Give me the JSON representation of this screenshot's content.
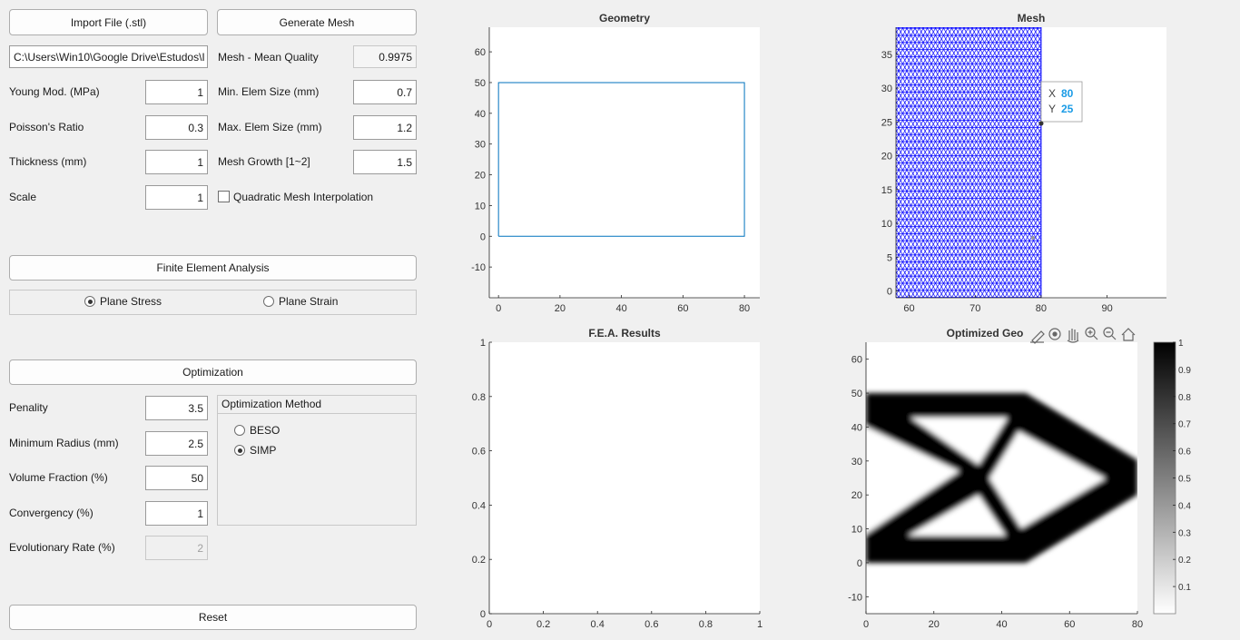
{
  "left": {
    "import_button": "Import File (.stl)",
    "generate_button": "Generate Mesh",
    "file_path": "C:\\Users\\Win10\\Google Drive\\Estudos\\I",
    "mesh_quality_label": "Mesh - Mean Quality",
    "mesh_quality_value": "0.9975",
    "young_label": "Young Mod. (MPa)",
    "young_value": "1",
    "min_elem_label": "Min. Elem Size (mm)",
    "min_elem_value": "0.7",
    "poisson_label": "Poisson's Ratio",
    "poisson_value": "0.3",
    "max_elem_label": "Max. Elem Size (mm)",
    "max_elem_value": "1.2",
    "thickness_label": "Thickness (mm)",
    "thickness_value": "1",
    "growth_label": "Mesh Growth [1~2]",
    "growth_value": "1.5",
    "scale_label": "Scale",
    "scale_value": "1",
    "quadratic_label": "Quadratic Mesh Interpolation",
    "fea_button": "Finite Element Analysis",
    "plane_stress": "Plane Stress",
    "plane_strain": "Plane Strain",
    "optimization_button": "Optimization",
    "penalty_label": "Penality",
    "penalty_value": "3.5",
    "radius_label": "Minimum Radius (mm)",
    "radius_value": "2.5",
    "volume_label": "Volume Fraction (%)",
    "volume_value": "50",
    "convergency_label": "Convergency (%)",
    "convergency_value": "1",
    "evolutionary_label": "Evolutionary Rate (%)",
    "evolutionary_value": "2",
    "method_title": "Optimization Method",
    "beso": "BESO",
    "simp": "SIMP",
    "reset_button": "Reset"
  },
  "chart_data": [
    {
      "type": "line",
      "title": "Geometry",
      "x": [
        0,
        80,
        80,
        0,
        0
      ],
      "y": [
        0,
        0,
        50,
        50,
        0
      ],
      "xlim": [
        -3,
        85
      ],
      "ylim": [
        -20,
        68
      ],
      "xticks": [
        "0",
        "20",
        "40",
        "60",
        "80"
      ],
      "yticks": [
        "-10",
        "0",
        "10",
        "20",
        "30",
        "40",
        "50",
        "60"
      ],
      "color": "#0072bd"
    },
    {
      "type": "scatter",
      "title": "Mesh",
      "xlim": [
        58,
        99
      ],
      "ylim": [
        -1,
        39
      ],
      "xticks": [
        "60",
        "70",
        "80",
        "90"
      ],
      "yticks": [
        "0",
        "5",
        "10",
        "15",
        "20",
        "25",
        "30",
        "35"
      ],
      "mesh_extent": {
        "x": [
          58,
          80
        ],
        "y": [
          -1,
          39
        ]
      },
      "color": "#0000ff",
      "datatip": {
        "x": "80",
        "y": "25",
        "x_label": "X",
        "y_label": "Y"
      }
    },
    {
      "type": "line",
      "title": "F.E.A. Results",
      "xlim": [
        0,
        1
      ],
      "ylim": [
        0,
        1
      ],
      "xticks": [
        "0",
        "0.2",
        "0.4",
        "0.6",
        "0.8",
        "1"
      ],
      "yticks": [
        "0",
        "0.2",
        "0.4",
        "0.6",
        "0.8",
        "1"
      ]
    },
    {
      "type": "heatmap",
      "title": "Optimized Geo",
      "xlim": [
        0,
        80
      ],
      "ylim": [
        -15,
        65
      ],
      "xticks": [
        "0",
        "20",
        "40",
        "60",
        "80"
      ],
      "yticks": [
        "-10",
        "0",
        "10",
        "20",
        "30",
        "40",
        "50",
        "60"
      ],
      "colorbar": {
        "min": 0,
        "max": 1,
        "ticks": [
          "0.1",
          "0.2",
          "0.3",
          "0.4",
          "0.5",
          "0.6",
          "0.7",
          "0.8",
          "0.9",
          "1"
        ]
      }
    }
  ],
  "toolbar_icons": [
    "brush-icon",
    "datatip-icon",
    "pan-icon",
    "zoom-in-icon",
    "zoom-out-icon",
    "home-icon"
  ]
}
